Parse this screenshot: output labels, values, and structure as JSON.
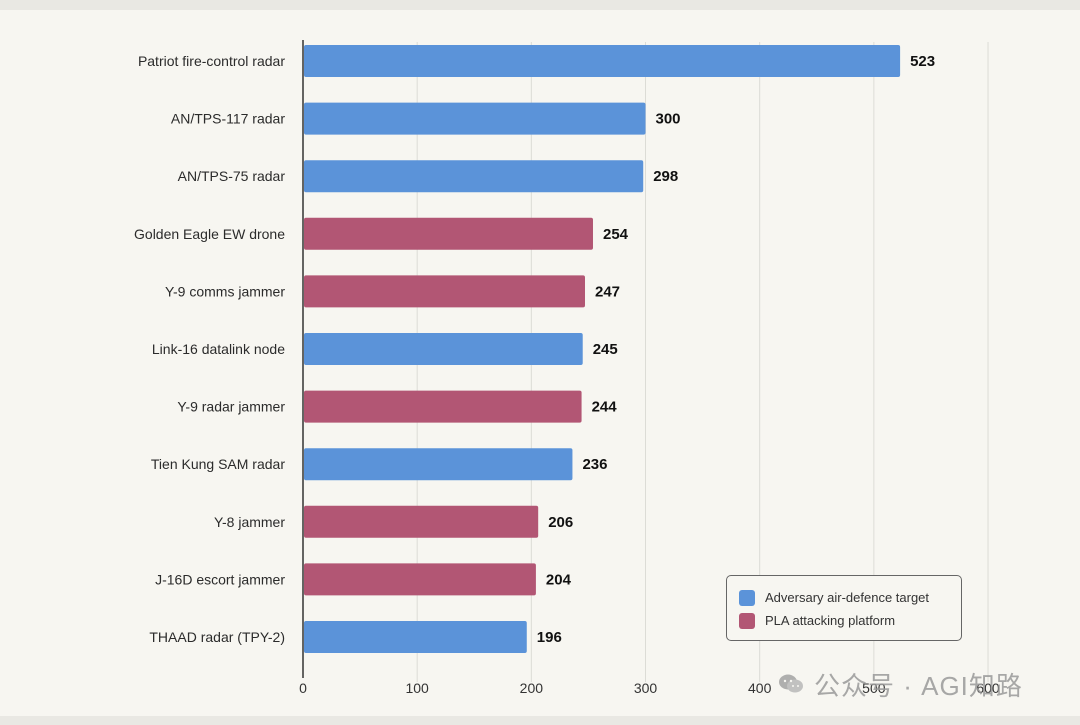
{
  "chart_data": {
    "type": "bar",
    "orientation": "horizontal",
    "categories": [
      "Patriot fire-control radar",
      "AN/TPS-117 radar",
      "AN/TPS-75 radar",
      "Golden Eagle EW drone",
      "Y-9 comms jammer",
      "Link-16 datalink node",
      "Y-9 radar jammer",
      "Tien Kung SAM radar",
      "Y-8 jammer",
      "J-16D escort jammer",
      "THAAD radar (TPY-2)"
    ],
    "values": [
      523,
      300,
      298,
      254,
      247,
      245,
      244,
      236,
      206,
      204,
      196
    ],
    "groups": [
      "target",
      "target",
      "target",
      "platform",
      "platform",
      "target",
      "platform",
      "target",
      "platform",
      "platform",
      "target"
    ],
    "title": "",
    "xlabel": "",
    "ylabel": "",
    "xlim": [
      0,
      600
    ],
    "xticks": [
      0,
      100,
      200,
      300,
      400,
      500,
      600
    ],
    "grid": "vertical",
    "legend": {
      "placement": "bottom-right",
      "entries": [
        {
          "key": "target",
          "label": "Adversary air-defence target",
          "color": "#5b93d9"
        },
        {
          "key": "platform",
          "label": "PLA attacking platform",
          "color": "#b25674"
        }
      ]
    }
  },
  "watermark": {
    "icon": "wechat-icon",
    "text": "公众号 · AGI知路"
  }
}
